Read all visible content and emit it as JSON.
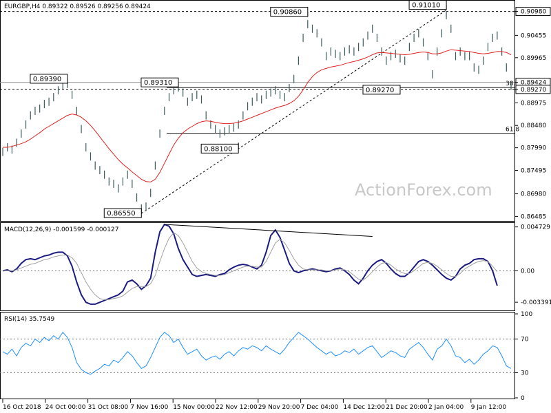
{
  "chart_data": {
    "type": "line",
    "title": "EURGBP,H4  0.89322 0.89526 0.89256 0.89424",
    "watermark": "ActionForex.com",
    "x_ticks": [
      "16 Oct 2018",
      "24 Oct 00:00",
      "31 Oct 08:00",
      "7 Nov 16:00",
      "15 Nov 00:00",
      "22 Nov 12:00",
      "29 Nov 20:00",
      "7 Dec 04:00",
      "14 Dec 12:00",
      "21 Dec 20:00",
      "2 Jan 04:00",
      "9 Jan 12:00"
    ],
    "price": {
      "ylim": [
        0.864,
        0.912
      ],
      "y_ticks": [
        0.9098,
        0.90455,
        0.89965,
        0.89424,
        0.8927,
        0.88975,
        0.8848,
        0.8799,
        0.87495,
        0.8698,
        0.86485
      ],
      "y_tick_labels": [
        "0.90980",
        "0.90455",
        "0.89965",
        "0.89424",
        "0.89270",
        "0.88975",
        "0.88480",
        "0.87990",
        "0.87495",
        "0.86980",
        "0.86485"
      ],
      "highlight_ticks": [
        "0.90980",
        "0.89424",
        "0.89270"
      ],
      "series": [
        {
          "name": "EURGBP",
          "color": "#3c5a5a",
          "values": [
            0.879,
            0.88,
            0.8795,
            0.881,
            0.883,
            0.885,
            0.887,
            0.888,
            0.8885,
            0.8895,
            0.89,
            0.891,
            0.8925,
            0.8935,
            0.8939,
            0.8915,
            0.888,
            0.884,
            0.88,
            0.878,
            0.876,
            0.875,
            0.874,
            0.8725,
            0.872,
            0.871,
            0.8725,
            0.874,
            0.872,
            0.869,
            0.8666,
            0.867,
            0.87,
            0.876,
            0.883,
            0.888,
            0.891,
            0.8925,
            0.8931,
            0.892,
            0.89,
            0.891,
            0.8915,
            0.8905,
            0.887,
            0.885,
            0.884,
            0.883,
            0.8835,
            0.884,
            0.8843,
            0.885,
            0.887,
            0.889,
            0.89,
            0.891,
            0.8905,
            0.8915,
            0.892,
            0.8925,
            0.8915,
            0.891,
            0.893,
            0.895,
            0.899,
            0.904,
            0.907,
            0.906,
            0.905,
            0.903,
            0.9,
            0.901,
            0.9005,
            0.9,
            0.901,
            0.9015,
            0.901,
            0.902,
            0.903,
            0.9045,
            0.906,
            0.904,
            0.901,
            0.899,
            0.9,
            0.9005,
            0.8995,
            0.899,
            0.902,
            0.904,
            0.905,
            0.903,
            0.9,
            0.896,
            0.901,
            0.905,
            0.909,
            0.906,
            0.9,
            0.901,
            0.9,
            0.9,
            0.8975,
            0.897,
            0.899,
            0.902,
            0.904,
            0.9045,
            0.901,
            0.8975,
            0.8935
          ]
        },
        {
          "name": "MA",
          "color": "#e02020",
          "values": [
            0.88,
            0.88,
            0.8802,
            0.8805,
            0.8808,
            0.8812,
            0.8818,
            0.8825,
            0.8832,
            0.884,
            0.8846,
            0.8852,
            0.8858,
            0.8864,
            0.887,
            0.8873,
            0.8871,
            0.8866,
            0.8858,
            0.8848,
            0.8836,
            0.8823,
            0.881,
            0.8797,
            0.8785,
            0.8773,
            0.8763,
            0.8755,
            0.8746,
            0.8738,
            0.873,
            0.8725,
            0.8724,
            0.873,
            0.8745,
            0.8765,
            0.8785,
            0.8805,
            0.882,
            0.8832,
            0.884,
            0.8846,
            0.8852,
            0.8856,
            0.8858,
            0.8857,
            0.8855,
            0.8853,
            0.8852,
            0.8852,
            0.8853,
            0.8855,
            0.8858,
            0.8862,
            0.8866,
            0.887,
            0.8874,
            0.8878,
            0.8882,
            0.8886,
            0.8889,
            0.8892,
            0.8896,
            0.8902,
            0.8912,
            0.8926,
            0.8942,
            0.8955,
            0.8964,
            0.897,
            0.8973,
            0.8976,
            0.8978,
            0.898,
            0.8983,
            0.8986,
            0.8988,
            0.8991,
            0.8994,
            0.8998,
            0.9003,
            0.9007,
            0.9008,
            0.9007,
            0.9006,
            0.9005,
            0.9004,
            0.9003,
            0.9004,
            0.9006,
            0.9008,
            0.9009,
            0.9008,
            0.9005,
            0.9005,
            0.9007,
            0.9011,
            0.9014,
            0.9013,
            0.9012,
            0.9011,
            0.901,
            0.9008,
            0.9006,
            0.9005,
            0.9006,
            0.9008,
            0.901,
            0.901,
            0.9008,
            0.9003
          ]
        }
      ],
      "annotations": [
        {
          "label": "0.89390",
          "value": 0.8939,
          "index": 14
        },
        {
          "label": "0.89310",
          "value": 0.8931,
          "index": 38
        },
        {
          "label": "0.88100",
          "value": 0.881,
          "index": 51
        },
        {
          "label": "0.86550",
          "value": 0.8655,
          "index": 30
        },
        {
          "label": "0.90860",
          "value": 0.9086,
          "index": 66
        },
        {
          "label": "0.91010",
          "value": 0.9101,
          "index": 96
        },
        {
          "label": "0.89270",
          "value": 0.8927,
          "index": 86
        }
      ],
      "levels": [
        {
          "value": 0.9098,
          "style": "dashed"
        },
        {
          "value": 0.89424,
          "style": "solid-gray"
        },
        {
          "value": 0.8927,
          "style": "dashed"
        },
        {
          "value": 0.8831,
          "style": "solid",
          "label": "61.8"
        },
        {
          "value": 0.8931,
          "style": "solid",
          "label": "38.2"
        }
      ]
    },
    "macd": {
      "label": "MACD(12,26,9) -0.001599 -0.000127",
      "ylim": [
        -0.0042,
        0.005
      ],
      "y_ticks": [
        0.004729,
        0.0,
        -0.003391
      ],
      "y_tick_labels": [
        "0.004729",
        "0.00",
        "-0.003391"
      ],
      "series": [
        {
          "name": "MACD",
          "color": "#1a1a80",
          "values": [
            0.0,
            0.0001,
            -0.0001,
            0.0002,
            0.0008,
            0.0012,
            0.0013,
            0.0012,
            0.0014,
            0.0016,
            0.0017,
            0.0019,
            0.002,
            0.002,
            0.0016,
            0.0005,
            -0.0012,
            -0.0026,
            -0.0034,
            -0.0036,
            -0.0036,
            -0.0034,
            -0.0032,
            -0.003,
            -0.0028,
            -0.0026,
            -0.0022,
            -0.0012,
            -0.001,
            -0.0014,
            -0.002,
            -0.0016,
            -0.0008,
            0.002,
            0.0042,
            0.005,
            0.0048,
            0.004,
            0.0024,
            0.0012,
            0.0004,
            -0.0004,
            -0.0006,
            -0.0005,
            -0.0004,
            -0.0005,
            -0.0006,
            -0.0004,
            -0.0003,
            0.0001,
            0.0004,
            0.0006,
            0.0007,
            0.0006,
            0.0004,
            0.0002,
            0.0006,
            0.002,
            0.0038,
            0.0044,
            0.0036,
            0.0022,
            0.0008,
            0.0,
            -0.0002,
            0.0,
            0.0001,
            0.0002,
            0.0001,
            0.0,
            -0.0001,
            0.0,
            0.0002,
            0.0003,
            0.0,
            -0.0004,
            -0.001,
            -0.0014,
            -0.0008,
            0.0,
            0.0006,
            0.001,
            0.0012,
            0.0008,
            0.0002,
            -0.0003,
            -0.0006,
            -0.0006,
            -0.0002,
            0.0004,
            0.001,
            0.0012,
            0.001,
            0.0006,
            0.0001,
            -0.0004,
            -0.0008,
            -0.001,
            -0.0006,
            0.0002,
            0.0006,
            0.0008,
            0.0012,
            0.0013,
            0.0013,
            0.001,
            0.0,
            -0.0016
          ]
        },
        {
          "name": "Signal",
          "color": "#a0a0a0",
          "values": [
            0.0,
            0.0,
            0.0,
            0.0001,
            0.0003,
            0.0005,
            0.0007,
            0.0008,
            0.001,
            0.0012,
            0.0013,
            0.0015,
            0.0016,
            0.0017,
            0.0017,
            0.0014,
            0.0008,
            -0.0002,
            -0.0012,
            -0.002,
            -0.0026,
            -0.003,
            -0.0031,
            -0.0031,
            -0.003,
            -0.0029,
            -0.0027,
            -0.0023,
            -0.0019,
            -0.0017,
            -0.0017,
            -0.0017,
            -0.0014,
            -0.0005,
            0.001,
            0.0024,
            0.0035,
            0.0041,
            0.0038,
            0.003,
            0.002,
            0.001,
            0.0003,
            -0.0001,
            -0.0003,
            -0.0004,
            -0.0005,
            -0.0005,
            -0.0004,
            -0.0002,
            0.0,
            0.0002,
            0.0004,
            0.0005,
            0.0005,
            0.0004,
            0.0004,
            0.001,
            0.002,
            0.003,
            0.0034,
            0.003,
            0.0022,
            0.0013,
            0.0006,
            0.0002,
            0.0001,
            0.0001,
            0.0001,
            0.0001,
            0.0,
            0.0,
            0.0001,
            0.0002,
            0.0001,
            -0.0001,
            -0.0005,
            -0.0009,
            -0.001,
            -0.0006,
            -0.0001,
            0.0004,
            0.0008,
            0.0009,
            0.0006,
            0.0002,
            -0.0001,
            -0.0003,
            -0.0003,
            0.0,
            0.0004,
            0.0008,
            0.0009,
            0.0008,
            0.0005,
            0.0001,
            -0.0003,
            -0.0006,
            -0.0006,
            -0.0003,
            0.0002,
            0.0005,
            0.0008,
            0.001,
            0.0011,
            0.001,
            0.0005,
            -0.0001
          ]
        }
      ],
      "trendline": {
        "from": [
          35,
          0.005
        ],
        "to": [
          80,
          0.0037
        ]
      }
    },
    "rsi": {
      "label": "RSI(14) 35.7549",
      "ylim": [
        0,
        100
      ],
      "y_ticks": [
        100,
        70,
        30,
        0
      ],
      "y_tick_labels": [
        "100",
        "70",
        "30",
        "0"
      ],
      "series": [
        {
          "name": "RSI",
          "color": "#1e90ff",
          "values": [
            55,
            52,
            58,
            50,
            60,
            65,
            62,
            70,
            66,
            72,
            68,
            74,
            70,
            78,
            72,
            60,
            42,
            34,
            30,
            28,
            32,
            35,
            40,
            38,
            45,
            42,
            48,
            55,
            50,
            42,
            35,
            38,
            48,
            60,
            72,
            78,
            74,
            66,
            70,
            60,
            52,
            55,
            58,
            50,
            45,
            48,
            50,
            46,
            52,
            55,
            50,
            56,
            60,
            58,
            62,
            60,
            56,
            62,
            58,
            55,
            52,
            58,
            66,
            72,
            78,
            74,
            70,
            65,
            60,
            56,
            52,
            55,
            50,
            52,
            56,
            54,
            58,
            52,
            56,
            60,
            62,
            55,
            48,
            52,
            56,
            54,
            50,
            48,
            58,
            62,
            66,
            60,
            52,
            45,
            58,
            62,
            70,
            62,
            50,
            48,
            42,
            46,
            40,
            45,
            52,
            56,
            62,
            60,
            50,
            38,
            35
          ]
        }
      ]
    }
  }
}
